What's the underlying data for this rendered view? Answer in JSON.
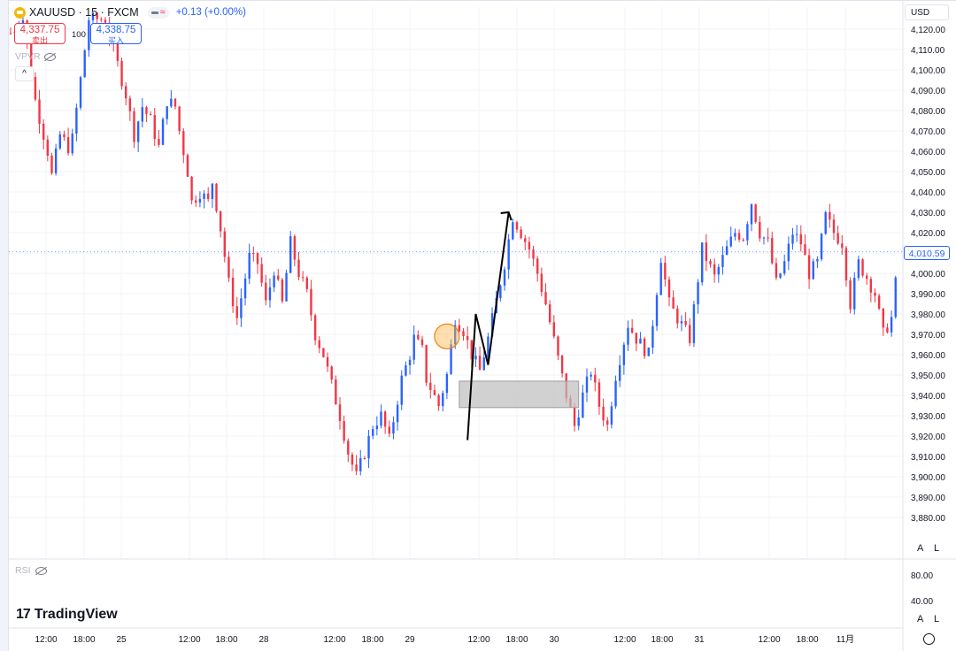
{
  "header": {
    "symbol": "XAUUSD · 15 · FXCM",
    "change": "+0.13 (+0.00%)",
    "sell_price": "4,337.75",
    "sell_label": "卖出",
    "buy_price": "4,338.75",
    "buy_label": "买入",
    "spread": "100",
    "indicator_top": "VPVR",
    "indicator_bottom": "RSI",
    "currency": "USD",
    "current_price": "4,010.59",
    "auto_label": "A",
    "log_label": "L",
    "logo": "TradingView"
  },
  "colors": {
    "up": "#2962ff",
    "down": "#f23645",
    "grid": "#f0f3fa",
    "zone": "#bdbdbd"
  },
  "chart_data": {
    "type": "candlestick",
    "y_axis": {
      "min": 3875,
      "max": 4125,
      "step": 10,
      "unit": "USD",
      "labels": [
        "4,120.00",
        "4,110.00",
        "4,100.00",
        "4,090.00",
        "4,080.00",
        "4,070.00",
        "4,060.00",
        "4,050.00",
        "4,040.00",
        "4,030.00",
        "4,020.00",
        "4,010.00",
        "4,000.00",
        "3,990.00",
        "3,980.00",
        "3,970.00",
        "3,960.00",
        "3,950.00",
        "3,940.00",
        "3,930.00",
        "3,920.00",
        "3,910.00",
        "3,900.00",
        "3,890.00",
        "3,880.00"
      ]
    },
    "rsi_axis": {
      "labels": [
        "80.00",
        "40.00"
      ]
    },
    "x_ticks": [
      "12:00",
      "18:00",
      "25",
      "12:00",
      "18:00",
      "28",
      "12:00",
      "18:00",
      "29",
      "12:00",
      "18:00",
      "30",
      "12:00",
      "18:00",
      "31",
      "12:00",
      "18:00",
      "11月"
    ],
    "close_path": [
      [
        0,
        4118
      ],
      [
        3,
        4125
      ],
      [
        6,
        4085
      ],
      [
        9,
        4060
      ],
      [
        10,
        4048
      ],
      [
        12,
        4068
      ],
      [
        14,
        4062
      ],
      [
        15,
        4066
      ],
      [
        18,
        4110
      ],
      [
        19,
        4125
      ],
      [
        23,
        4125
      ],
      [
        25,
        4110
      ],
      [
        28,
        4088
      ],
      [
        30,
        4068
      ],
      [
        32,
        4082
      ],
      [
        34,
        4075
      ],
      [
        36,
        4062
      ],
      [
        38,
        4085
      ],
      [
        40,
        4082
      ],
      [
        41,
        4070
      ],
      [
        43,
        4050
      ],
      [
        44,
        4035
      ],
      [
        46,
        4040
      ],
      [
        48,
        4035
      ],
      [
        49,
        4045
      ],
      [
        51,
        4022
      ],
      [
        53,
        3995
      ],
      [
        55,
        3978
      ],
      [
        58,
        4008
      ],
      [
        60,
        4005
      ],
      [
        62,
        3985
      ],
      [
        64,
        4002
      ],
      [
        66,
        3985
      ],
      [
        68,
        4015
      ],
      [
        70,
        4000
      ],
      [
        72,
        3990
      ],
      [
        74,
        3970
      ],
      [
        76,
        3960
      ],
      [
        78,
        3945
      ],
      [
        80,
        3930
      ],
      [
        82,
        3912
      ],
      [
        84,
        3900
      ],
      [
        86,
        3912
      ],
      [
        88,
        3925
      ],
      [
        90,
        3930
      ],
      [
        92,
        3918
      ],
      [
        95,
        3948
      ],
      [
        97,
        3960
      ],
      [
        98,
        3968
      ],
      [
        100,
        3962
      ],
      [
        101,
        3948
      ],
      [
        104,
        3935
      ],
      [
        106,
        3950
      ],
      [
        108,
        3978
      ],
      [
        110,
        3972
      ],
      [
        112,
        3960
      ],
      [
        114,
        3952
      ],
      [
        116,
        3968
      ],
      [
        120,
        4005
      ],
      [
        122,
        4028
      ],
      [
        124,
        4020
      ],
      [
        126,
        4012
      ],
      [
        128,
        4000
      ],
      [
        130,
        3985
      ],
      [
        133,
        3958
      ],
      [
        135,
        3940
      ],
      [
        137,
        3925
      ],
      [
        139,
        3940
      ],
      [
        141,
        3952
      ],
      [
        143,
        3935
      ],
      [
        145,
        3925
      ],
      [
        147,
        3950
      ],
      [
        150,
        3975
      ],
      [
        152,
        3968
      ],
      [
        155,
        3960
      ],
      [
        158,
        4008
      ],
      [
        160,
        3985
      ],
      [
        162,
        3978
      ],
      [
        165,
        3968
      ],
      [
        168,
        4012
      ],
      [
        171,
        3998
      ],
      [
        174,
        4012
      ],
      [
        176,
        4020
      ],
      [
        178,
        4018
      ],
      [
        180,
        4035
      ],
      [
        182,
        4020
      ],
      [
        184,
        4015
      ],
      [
        186,
        3995
      ],
      [
        188,
        4005
      ],
      [
        190,
        4020
      ],
      [
        192,
        4015
      ],
      [
        194,
        4000
      ],
      [
        196,
        4005
      ],
      [
        198,
        4028
      ],
      [
        200,
        4020
      ],
      [
        202,
        4015
      ],
      [
        204,
        3985
      ],
      [
        206,
        4005
      ],
      [
        208,
        3998
      ],
      [
        210,
        3990
      ],
      [
        212,
        3970
      ],
      [
        214,
        3978
      ],
      [
        216,
        4012
      ],
      [
        218,
        4015
      ],
      [
        220,
        4012
      ]
    ],
    "annotations": {
      "arrow_path": [
        [
          111,
          3918
        ],
        [
          113,
          3980
        ],
        [
          116,
          3955
        ],
        [
          121,
          4030
        ]
      ],
      "circle_center": [
        106,
        3969
      ],
      "zone": {
        "x0": 109,
        "x1": 138,
        "y_low": 3934,
        "y_high": 3947
      }
    }
  }
}
